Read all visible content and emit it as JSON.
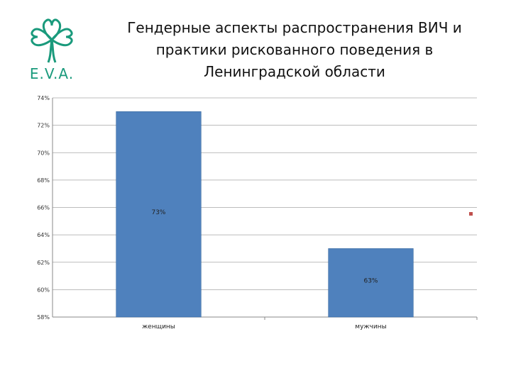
{
  "slide": {
    "title": "Гендерные аспекты распространения ВИЧ и практики рискованного поведения в Ленинградской области",
    "logo_text": "E.V.A.",
    "logo_color": "#1a9a7c"
  },
  "chart_data": {
    "type": "bar",
    "title": "",
    "xlabel": "",
    "ylabel": "",
    "categories": [
      "женщины",
      "мужчины"
    ],
    "series": [
      {
        "values": [
          73,
          63
        ],
        "data_labels": [
          "73%",
          "63%"
        ],
        "color": "#4f81bd"
      }
    ],
    "ylim": [
      58,
      74
    ],
    "yticks": [
      "58%",
      "60%",
      "62%",
      "64%",
      "66%",
      "68%",
      "70%",
      "72%",
      "74%"
    ],
    "grid": true,
    "legend": "right",
    "legend_marker_color": "#c0504d"
  }
}
